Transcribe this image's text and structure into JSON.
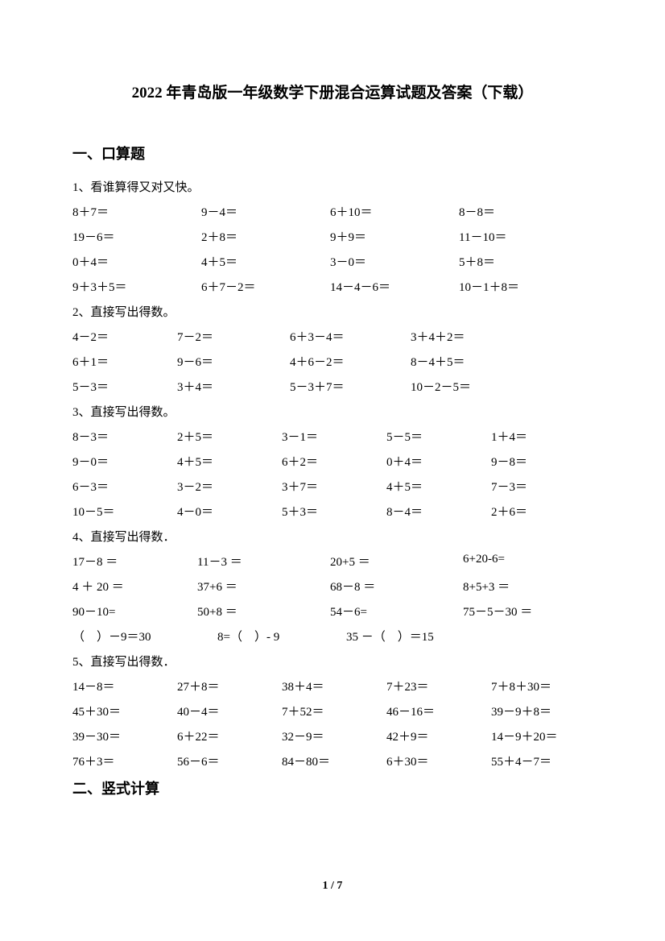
{
  "title": "2022 年青岛版一年级数学下册混合运算试题及答案（下载）",
  "section1_heading": "一、口算题",
  "section2_heading": "二、竖式计算",
  "page_num": "1 / 7",
  "p1": {
    "intro": "1、看谁算得又对又快。",
    "rows": [
      [
        "8＋7＝",
        "9－4＝",
        "6＋10＝",
        "8－8＝"
      ],
      [
        "19－6＝",
        "2＋8＝",
        "9＋9＝",
        "11－10＝"
      ],
      [
        "0＋4＝",
        "4＋5＝",
        "3－0＝",
        "5＋8＝"
      ],
      [
        "9＋3＋5＝",
        "6＋7－2＝",
        "14－4－6＝",
        "10－1＋8＝"
      ]
    ]
  },
  "p2": {
    "intro": "2、直接写出得数。",
    "rows": [
      [
        "4－2＝",
        "7－2＝",
        "6＋3－4＝",
        "3＋4＋2＝"
      ],
      [
        "6＋1＝",
        "9－6＝",
        "4＋6－2＝",
        "8－4＋5＝"
      ],
      [
        "5－3＝",
        "3＋4＝",
        "5－3＋7＝",
        "10－2－5＝"
      ]
    ]
  },
  "p3": {
    "intro": "3、直接写出得数。",
    "rows": [
      [
        "8－3＝",
        "2＋5＝",
        "3－1＝",
        "5－5＝",
        "1＋4＝"
      ],
      [
        "9－0＝",
        "4＋5＝",
        "6＋2＝",
        "0＋4＝",
        "9－8＝"
      ],
      [
        "6－3＝",
        "3－2＝",
        "3＋7＝",
        "4＋5＝",
        "7－3＝"
      ],
      [
        "10－5＝",
        "4－0＝",
        "5＋3＝",
        "8－4＝",
        "2＋6＝"
      ]
    ]
  },
  "p4": {
    "intro": "4、直接写出得数．",
    "rows": [
      [
        "17－8 ＝",
        "11－3 ＝",
        "20+5 ＝",
        "6+20-6="
      ],
      [
        "4 ＋ 20 ＝",
        "37+6 ＝",
        "68－8 ＝",
        "8+5+3 ＝"
      ],
      [
        "90－10=",
        "50+8 ＝",
        "54－6=",
        "75－5－30 ＝"
      ]
    ],
    "last_row": [
      "（　）－9＝30",
      "8=（　）- 9",
      "35 －（　）＝15",
      ""
    ]
  },
  "p5": {
    "intro": "5、直接写出得数．",
    "rows": [
      [
        "14－8＝",
        "27＋8＝",
        "38＋4＝",
        "7＋23＝",
        "7＋8＋30＝"
      ],
      [
        "45＋30＝",
        "40－4＝",
        "7＋52＝",
        "46－16＝",
        "39－9＋8＝"
      ],
      [
        "39－30＝",
        "6＋22＝",
        "32－9＝",
        "42＋9＝",
        "14－9＋20＝"
      ],
      [
        "76＋3＝",
        "56－6＝",
        "84－80＝",
        "6＋30＝",
        "55＋4－7＝"
      ]
    ]
  }
}
